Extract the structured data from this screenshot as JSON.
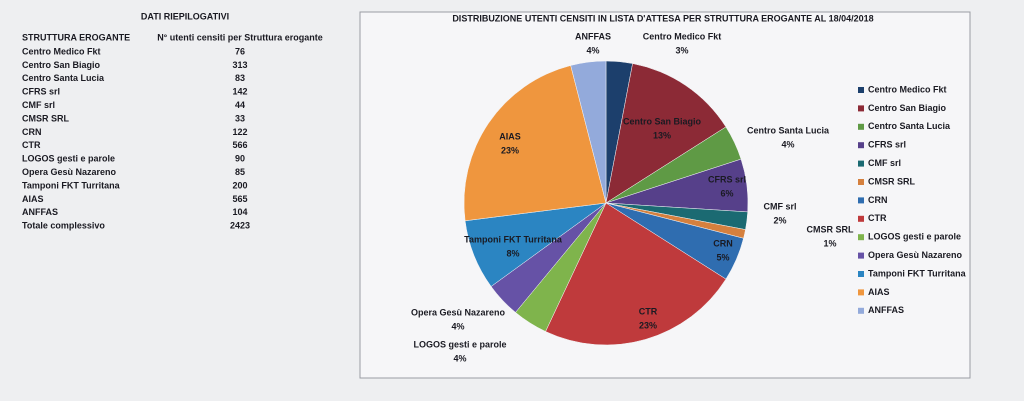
{
  "table": {
    "title": "DATI RIEPILOGATIVI",
    "header": [
      "STRUTTURA EROGANTE",
      "N° utenti censiti per Struttura erogante"
    ],
    "rows": [
      [
        "Centro Medico Fkt",
        76
      ],
      [
        "Centro San Biagio",
        313
      ],
      [
        "Centro Santa Lucia",
        83
      ],
      [
        "CFRS srl",
        142
      ],
      [
        "CMF srl",
        44
      ],
      [
        "CMSR SRL",
        33
      ],
      [
        "CRN",
        122
      ],
      [
        "CTR",
        566
      ],
      [
        "LOGOS gesti e parole",
        90
      ],
      [
        "Opera Gesù Nazareno",
        85
      ],
      [
        "Tamponi FKT Turritana",
        200
      ],
      [
        "AIAS",
        565
      ],
      [
        "ANFFAS",
        104
      ],
      [
        "Totale complessivo",
        2423
      ]
    ]
  },
  "chart_data": {
    "type": "pie",
    "title": "DISTRIBUZIONE UTENTI CENSITI IN LISTA D'ATTESA PER STRUTTURA EROGANTE AL 18/04/2018",
    "categories": [
      "Centro Medico Fkt",
      "Centro San Biagio",
      "Centro Santa Lucia",
      "CFRS srl",
      "CMF srl",
      "CMSR SRL",
      "CRN",
      "CTR",
      "LOGOS gesti e parole",
      "Opera Gesù Nazareno",
      "Tamponi FKT Turritana",
      "AIAS",
      "ANFFAS"
    ],
    "values": [
      3,
      13,
      4,
      6,
      2,
      1,
      5,
      23,
      4,
      4,
      8,
      23,
      4
    ],
    "value_labels": [
      "3%",
      "13%",
      "4%",
      "6%",
      "2%",
      "1%",
      "5%",
      "23%",
      "4%",
      "4%",
      "8%",
      "23%",
      "4%"
    ],
    "colors": [
      "#1c3f6c",
      "#8c2a36",
      "#5f9a45",
      "#56408a",
      "#1b6a72",
      "#d5803e",
      "#2f6db0",
      "#bf3a3c",
      "#7fb44c",
      "#6652a6",
      "#2b85c2",
      "#ef963e",
      "#93aadb"
    ],
    "legend": "right"
  }
}
